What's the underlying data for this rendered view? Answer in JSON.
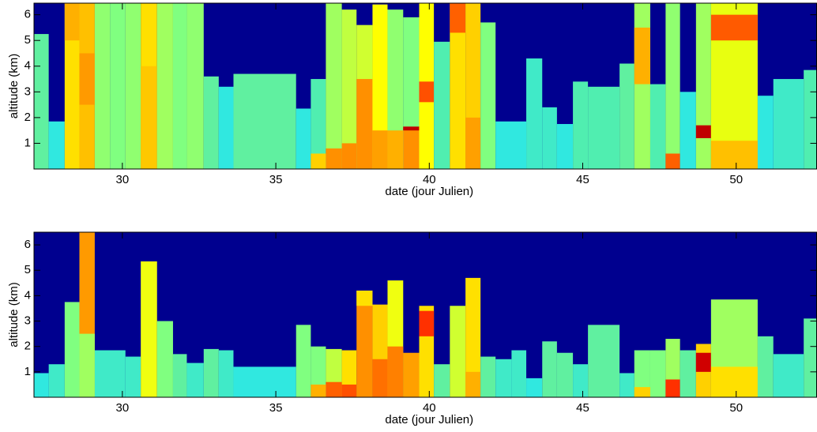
{
  "chart_data": [
    {
      "type": "heatmap",
      "xlabel": "date (jour Julien)",
      "ylabel": "altitude (km)",
      "xlim": [
        27.12,
        52.62
      ],
      "ylim": [
        0,
        6.45
      ],
      "xticks": [
        30,
        35,
        40,
        45,
        50
      ],
      "yticks": [
        1,
        2,
        3,
        4,
        5,
        6
      ],
      "background": "#00008f",
      "columns": [
        [
          27.12,
          27.6,
          5.25,
          "#60f0a0"
        ],
        [
          27.6,
          28.12,
          1.85,
          "#30e8e0"
        ],
        [
          28.12,
          28.6,
          6.45,
          "#ffe000",
          [
            [
              5.0,
              6.45,
              "#ffb000"
            ]
          ]
        ],
        [
          28.6,
          29.1,
          6.45,
          "#ffc000",
          [
            [
              2.5,
              4.5,
              "#ff9a00"
            ]
          ]
        ],
        [
          29.1,
          29.6,
          6.45,
          "#90ff70"
        ],
        [
          29.6,
          30.1,
          6.45,
          "#80ff80"
        ],
        [
          30.1,
          30.6,
          6.45,
          "#90ff70"
        ],
        [
          30.6,
          31.13,
          6.45,
          "#ffe000",
          [
            [
              0,
              4,
              "#ffc800"
            ]
          ]
        ],
        [
          31.13,
          31.65,
          6.45,
          "#a0ff60"
        ],
        [
          31.65,
          32.1,
          6.45,
          "#80ff80"
        ],
        [
          32.1,
          32.65,
          6.45,
          "#90ff70"
        ],
        [
          32.65,
          33.14,
          3.6,
          "#60f0a0"
        ],
        [
          33.14,
          33.62,
          3.2,
          "#30e8e0"
        ],
        [
          33.62,
          35.66,
          3.7,
          "#60f0a0"
        ],
        [
          35.66,
          36.14,
          2.35,
          "#30e8e0"
        ],
        [
          36.14,
          36.63,
          3.5,
          "#50eeb0",
          [
            [
              0,
              0.6,
              "#ffd000"
            ]
          ]
        ],
        [
          36.63,
          37.15,
          6.45,
          "#a0ff60",
          [
            [
              0,
              0.8,
              "#ff9000"
            ]
          ]
        ],
        [
          37.15,
          37.63,
          6.2,
          "#c0ff40",
          [
            [
              0,
              1,
              "#ff8c00"
            ]
          ]
        ],
        [
          37.63,
          38.15,
          5.6,
          "#d0ff30",
          [
            [
              0,
              3.5,
              "#ff9000"
            ]
          ]
        ],
        [
          38.15,
          38.64,
          6.4,
          "#ffff00",
          [
            [
              0,
              1.5,
              "#ffa000"
            ]
          ]
        ],
        [
          38.64,
          39.15,
          6.2,
          "#90ff70",
          [
            [
              0,
              1.5,
              "#ffb000"
            ]
          ]
        ],
        [
          39.15,
          39.67,
          5.9,
          "#80ff80",
          [
            [
              0,
              1.6,
              "#ff9000"
            ],
            [
              1.5,
              1.65,
              "#c00000"
            ]
          ]
        ],
        [
          39.67,
          40.15,
          6.45,
          "#ffff00",
          [
            [
              2.6,
              3.4,
              "#ff5000"
            ]
          ]
        ],
        [
          40.15,
          40.67,
          4.95,
          "#50eeb0"
        ],
        [
          40.67,
          41.18,
          6.45,
          "#ffe000",
          [
            [
              5.3,
              6.45,
              "#ff6000"
            ]
          ]
        ],
        [
          41.18,
          41.67,
          6.45,
          "#ffd000",
          [
            [
              0,
              2,
              "#ffa000"
            ]
          ]
        ],
        [
          41.67,
          42.16,
          5.7,
          "#80ff80"
        ],
        [
          42.16,
          43.16,
          1.85,
          "#30e8e0"
        ],
        [
          43.16,
          43.68,
          4.3,
          "#40eac8"
        ],
        [
          43.68,
          44.16,
          2.4,
          "#40eac8"
        ],
        [
          44.16,
          44.68,
          1.75,
          "#30e8e0"
        ],
        [
          44.68,
          45.17,
          3.4,
          "#50eeb0"
        ],
        [
          45.17,
          46.2,
          3.2,
          "#50eeb0"
        ],
        [
          46.2,
          46.68,
          4.1,
          "#60f0a0"
        ],
        [
          46.68,
          47.2,
          6.45,
          "#a0ff60",
          [
            [
              3.3,
              5.5,
              "#ffb000"
            ]
          ]
        ],
        [
          47.2,
          47.7,
          3.3,
          "#50eeb0"
        ],
        [
          47.7,
          48.17,
          6.45,
          "#90ff70",
          [
            [
              0,
              0.6,
              "#ff6000"
            ]
          ]
        ],
        [
          48.17,
          48.69,
          3.0,
          "#30e8e0"
        ],
        [
          48.69,
          49.18,
          6.45,
          "#a0ff60",
          [
            [
              1.2,
              1.7,
              "#c00000"
            ]
          ]
        ],
        [
          49.18,
          50.7,
          6.45,
          "#e8ff10",
          [
            [
              5,
              6,
              "#ff5a00"
            ],
            [
              0,
              1.1,
              "#ffc000"
            ]
          ]
        ],
        [
          50.7,
          51.21,
          2.85,
          "#30e8e0"
        ],
        [
          51.21,
          52.2,
          3.5,
          "#40eac8"
        ],
        [
          52.2,
          52.62,
          3.85,
          "#50eeb0"
        ]
      ]
    },
    {
      "type": "heatmap",
      "xlabel": "date (jour Julien)",
      "ylabel": "altitude (km)",
      "xlim": [
        27.12,
        52.62
      ],
      "ylim": [
        0,
        6.5
      ],
      "xticks": [
        30,
        35,
        40,
        45,
        50
      ],
      "yticks": [
        1,
        2,
        3,
        4,
        5,
        6
      ],
      "background": "#00008f",
      "columns": [
        [
          27.12,
          27.6,
          0.95,
          "#30e8e0"
        ],
        [
          27.6,
          28.12,
          1.3,
          "#40eac8"
        ],
        [
          28.12,
          28.6,
          3.75,
          "#80ff80"
        ],
        [
          28.6,
          29.1,
          6.5,
          "#ff9a00",
          [
            [
              0,
              2.5,
              "#a0ff60"
            ]
          ]
        ],
        [
          29.1,
          30.1,
          1.85,
          "#40eac8"
        ],
        [
          30.1,
          30.6,
          1.6,
          "#40eac8"
        ],
        [
          30.6,
          31.13,
          5.35,
          "#f0ff10"
        ],
        [
          31.13,
          31.65,
          3.0,
          "#80ff80"
        ],
        [
          31.65,
          32.1,
          1.7,
          "#60f0a0"
        ],
        [
          32.1,
          32.65,
          1.35,
          "#40eac8"
        ],
        [
          32.65,
          33.14,
          1.9,
          "#60f0a0"
        ],
        [
          33.14,
          33.62,
          1.85,
          "#40eac8"
        ],
        [
          33.62,
          35.66,
          1.2,
          "#30e8e0"
        ],
        [
          35.66,
          36.14,
          2.85,
          "#80ff80"
        ],
        [
          36.14,
          36.63,
          2.0,
          "#80ff80",
          [
            [
              0,
              0.5,
              "#ffb000"
            ]
          ]
        ],
        [
          36.63,
          37.15,
          1.9,
          "#c0ff40",
          [
            [
              0,
              0.6,
              "#ff6000"
            ]
          ]
        ],
        [
          37.15,
          37.63,
          1.85,
          "#ffe000",
          [
            [
              0,
              0.5,
              "#ff5000"
            ]
          ]
        ],
        [
          37.63,
          38.15,
          4.2,
          "#ff9000",
          [
            [
              3.6,
              4.2,
              "#ffe000"
            ]
          ]
        ],
        [
          38.15,
          38.64,
          3.65,
          "#ffd000",
          [
            [
              0,
              1.5,
              "#ff7000"
            ]
          ]
        ],
        [
          38.64,
          39.15,
          4.6,
          "#f0ff10",
          [
            [
              0,
              2,
              "#ff8000"
            ]
          ]
        ],
        [
          39.15,
          39.67,
          1.75,
          "#ffa000"
        ],
        [
          39.67,
          40.15,
          3.6,
          "#ffe000",
          [
            [
              2.4,
              3.4,
              "#ff3000"
            ]
          ]
        ],
        [
          40.15,
          40.67,
          1.3,
          "#60f0a0"
        ],
        [
          40.67,
          41.18,
          3.6,
          "#d0ff30"
        ],
        [
          41.18,
          41.67,
          4.7,
          "#ffe000",
          [
            [
              0,
              1,
              "#ffb000"
            ]
          ]
        ],
        [
          41.67,
          42.16,
          1.6,
          "#60f0a0"
        ],
        [
          42.16,
          42.68,
          1.5,
          "#40eac8"
        ],
        [
          42.68,
          43.16,
          1.85,
          "#40eac8"
        ],
        [
          43.16,
          43.68,
          0.75,
          "#30e8e0"
        ],
        [
          43.68,
          44.16,
          2.2,
          "#60f0a0"
        ],
        [
          44.16,
          44.68,
          1.75,
          "#60f0a0"
        ],
        [
          44.68,
          45.17,
          1.3,
          "#40eac8"
        ],
        [
          45.17,
          46.2,
          2.85,
          "#60f0a0"
        ],
        [
          46.2,
          46.68,
          0.95,
          "#40eac8"
        ],
        [
          46.68,
          47.2,
          1.85,
          "#80ff80",
          [
            [
              0,
              0.4,
              "#ffd000"
            ]
          ]
        ],
        [
          47.2,
          47.7,
          1.85,
          "#80ff80"
        ],
        [
          47.7,
          48.17,
          2.3,
          "#a0ff60",
          [
            [
              0,
              0.7,
              "#ff3000"
            ]
          ]
        ],
        [
          48.17,
          48.69,
          1.85,
          "#60f0a0"
        ],
        [
          48.69,
          49.18,
          2.1,
          "#ffd000",
          [
            [
              1,
              1.75,
              "#d00000"
            ]
          ]
        ],
        [
          49.18,
          50.7,
          3.85,
          "#a0ff60",
          [
            [
              0,
              1.2,
              "#ffe000"
            ]
          ]
        ],
        [
          50.7,
          51.21,
          2.4,
          "#60f0a0"
        ],
        [
          51.21,
          52.2,
          1.7,
          "#40eac8"
        ],
        [
          52.2,
          52.62,
          3.1,
          "#60f0a0"
        ]
      ]
    }
  ]
}
